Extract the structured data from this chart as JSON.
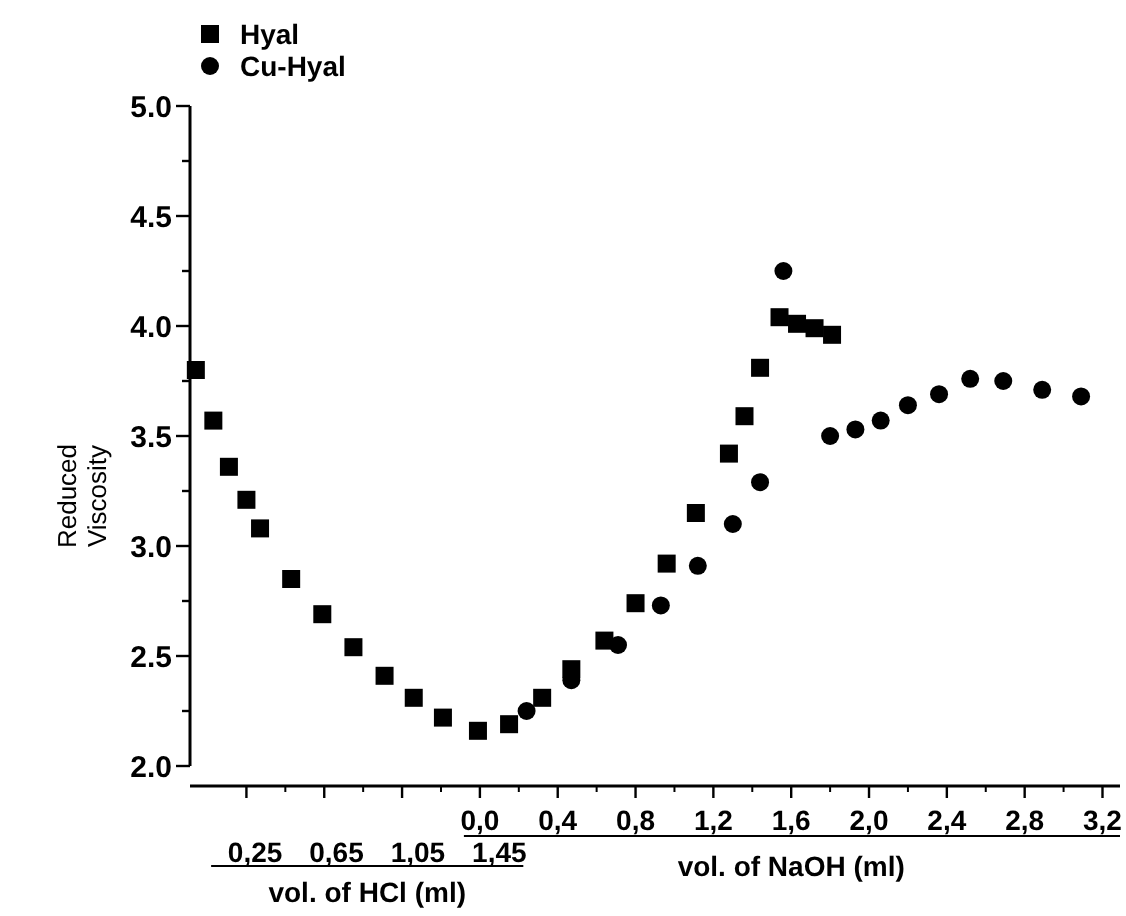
{
  "chart_data": {
    "type": "scatter",
    "xlabel": "vol. of NaOH (ml)",
    "x2label": "vol. of HCl (ml)",
    "ylabel": "Reduced Viscosity",
    "legend": "top left",
    "xlim": [
      -1.49,
      3.29
    ],
    "xticks": [
      {
        "value": -1.2,
        "label": null
      },
      {
        "value": -0.8,
        "label": null
      },
      {
        "value": -0.4,
        "label": null
      },
      {
        "value": 0,
        "label": "0,0"
      },
      {
        "value": 0.4,
        "label": "0,4"
      },
      {
        "value": 0.8,
        "label": "0,8"
      },
      {
        "value": 1.2,
        "label": "1,2"
      },
      {
        "value": 1.6,
        "label": "1,6"
      },
      {
        "value": 2.0,
        "label": "2,0"
      },
      {
        "value": 2.4,
        "label": "2,4"
      },
      {
        "value": 2.8,
        "label": "2,8"
      },
      {
        "value": 3.2,
        "label": "3,2"
      }
    ],
    "x2lim": [
      -0.07,
      4.5
    ],
    "x2ticks": [
      {
        "value": 0.25,
        "label": "0,25"
      },
      {
        "value": 0.65,
        "label": "0,65"
      },
      {
        "value": 1.05,
        "label": "1,05"
      },
      {
        "value": 1.45,
        "label": "1,45"
      }
    ],
    "ylim": [
      2,
      5
    ],
    "yticks": [
      {
        "value": 2,
        "label": "2.0"
      },
      {
        "value": 2.25,
        "label": null
      },
      {
        "value": 2.5,
        "label": "2.5"
      },
      {
        "value": 2.75,
        "label": null
      },
      {
        "value": 3,
        "label": "3.0"
      },
      {
        "value": 3.25,
        "label": null
      },
      {
        "value": 3.5,
        "label": "3.5"
      },
      {
        "value": 3.75,
        "label": null
      },
      {
        "value": 4,
        "label": "4.0"
      },
      {
        "value": 4.25,
        "label": null
      },
      {
        "value": 4.5,
        "label": "4.5"
      },
      {
        "value": 4.75,
        "label": null
      },
      {
        "value": 5,
        "label": "5.0"
      }
    ],
    "series": [
      {
        "name": "Hyal",
        "color": "#000000",
        "marker": "square",
        "x": [
          -1.46,
          -1.37,
          -1.29,
          -1.2,
          -1.13,
          -0.97,
          -0.81,
          -0.65,
          -0.49,
          -0.34,
          -0.19,
          -0.01,
          0.15,
          0.32,
          0.47,
          0.64,
          0.8,
          0.96,
          1.11,
          1.28,
          1.36,
          1.44,
          1.54,
          1.63,
          1.72,
          1.81
        ],
        "values": [
          3.8,
          3.57,
          3.36,
          3.21,
          3.08,
          2.85,
          2.69,
          2.54,
          2.41,
          2.31,
          2.22,
          2.16,
          2.19,
          2.31,
          2.44,
          2.57,
          2.74,
          2.92,
          3.15,
          3.42,
          3.59,
          3.81,
          4.04,
          4.01,
          3.99,
          3.96
        ]
      },
      {
        "name": "Cu-Hyal",
        "color": "#000000",
        "marker": "circle",
        "x": [
          0.24,
          0.47,
          0.71,
          0.93,
          1.12,
          1.3,
          1.44,
          1.56,
          1.8,
          1.93,
          2.06,
          2.2,
          2.36,
          2.52,
          2.69,
          2.89,
          3.09
        ],
        "values": [
          2.25,
          2.39,
          2.55,
          2.73,
          2.91,
          3.1,
          3.29,
          4.25,
          3.5,
          3.53,
          3.57,
          3.64,
          3.69,
          3.76,
          3.75,
          3.71,
          3.68
        ]
      }
    ]
  }
}
